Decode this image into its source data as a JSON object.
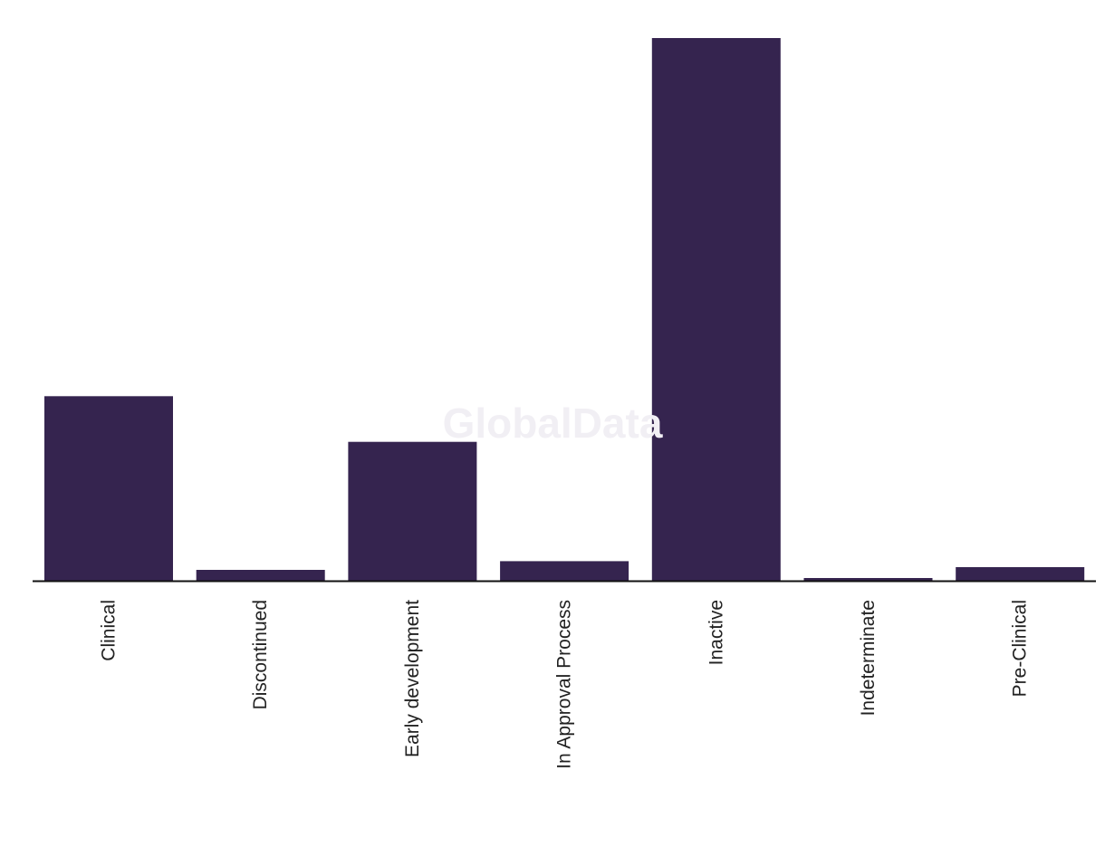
{
  "chart_data": {
    "type": "bar",
    "categories": [
      "Clinical",
      "Discontinued",
      "Early development",
      "In Approval Process",
      "Inactive",
      "Indeterminate",
      "Pre-Clinical"
    ],
    "values": [
      34,
      2,
      25.6,
      3.6,
      100,
      0.5,
      2.5
    ],
    "ylim": [
      0,
      100
    ],
    "grid": false,
    "legend": "none",
    "bar_color": "#35244f",
    "axis_color": "#111111"
  },
  "watermark": "GlobalData"
}
